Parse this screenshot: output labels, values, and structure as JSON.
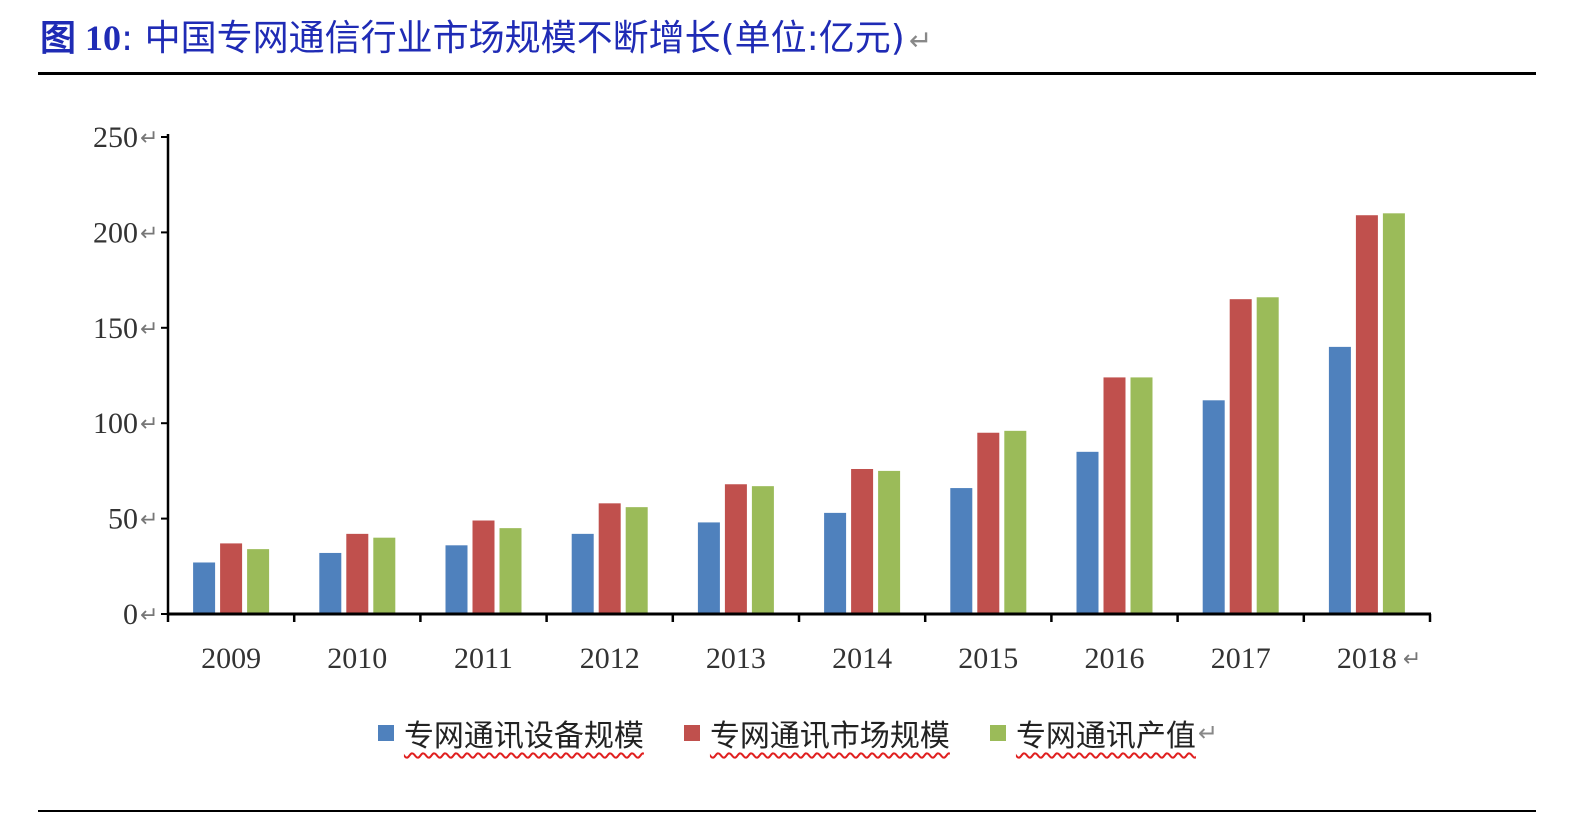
{
  "header": {
    "figure_label": "图 10",
    "separator": ":",
    "title": "中国专网通信行业市场规模不断增长(单位:亿元)",
    "return_mark": "↵"
  },
  "chart_data": {
    "type": "bar",
    "categories": [
      "2009",
      "2010",
      "2011",
      "2012",
      "2013",
      "2014",
      "2015",
      "2016",
      "2017",
      "2018"
    ],
    "series": [
      {
        "name": "专网通讯设备规模",
        "color": "#4f81bd",
        "values": [
          27,
          32,
          36,
          42,
          48,
          53,
          66,
          85,
          112,
          140
        ]
      },
      {
        "name": "专网通讯市场规模",
        "color": "#c0504d",
        "values": [
          37,
          42,
          49,
          58,
          68,
          76,
          95,
          124,
          165,
          209
        ]
      },
      {
        "name": "专网通讯产值",
        "color": "#9bbb59",
        "values": [
          34,
          40,
          45,
          56,
          67,
          75,
          96,
          124,
          166,
          210
        ]
      }
    ],
    "yticks": [
      "250",
      "200",
      "150",
      "100",
      "50",
      "0"
    ],
    "ylim": [
      0,
      250
    ],
    "grid": false,
    "legend_position": "bottom"
  }
}
